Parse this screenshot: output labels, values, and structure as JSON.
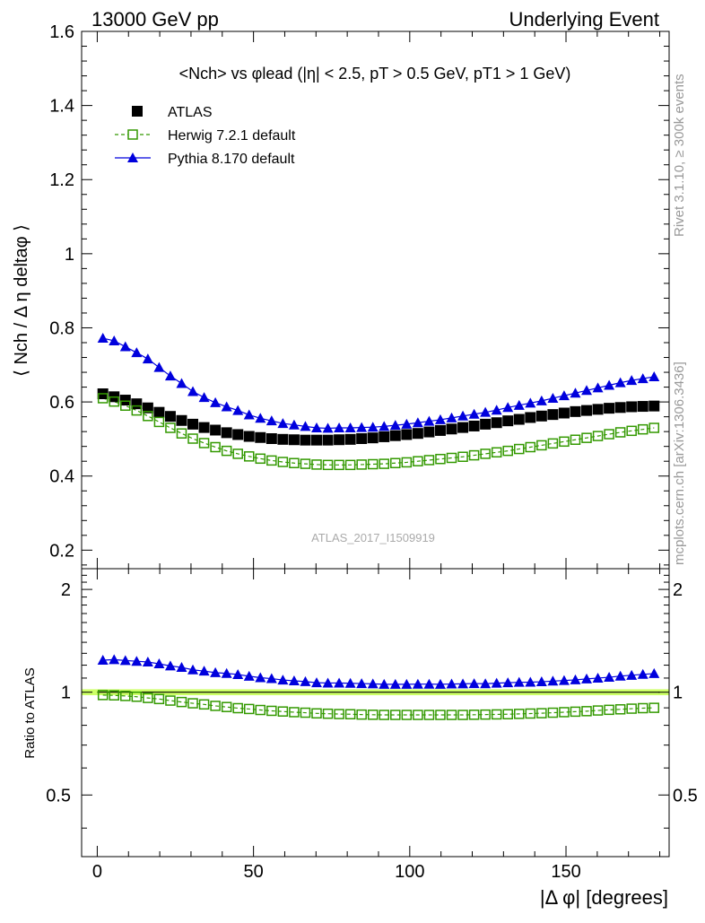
{
  "header": {
    "left": "13000 GeV pp",
    "right": "Underlying Event"
  },
  "side_label_top": "Rivet 3.1.10, ≥ 300k events",
  "side_label_bottom": "mcplots.cern.ch [arXiv:1306.3436]",
  "watermark": "ATLAS_2017_I1509919",
  "colors": {
    "atlas": "#000000",
    "herwig": "#339900",
    "pythia": "#0000dd",
    "band": "#ccff66"
  },
  "chart_data": [
    {
      "type": "scatter",
      "title": "<Nch> vs φlead (|η| < 2.5, pT > 0.5 GeV, pT1 > 1 GeV)",
      "ylabel": "⟨ Nch / Δ η deltaφ ⟩",
      "xlabel": "|Δ φ| [degrees]",
      "xlim": [
        -5,
        183
      ],
      "ylim": [
        0.15,
        1.6
      ],
      "yticks": [
        "0.2",
        "0.4",
        "0.6",
        "0.8",
        "1",
        "1.2",
        "1.4",
        "1.6"
      ],
      "xticks": [
        "0",
        "50",
        "100",
        "150"
      ],
      "legend_position": "top-left",
      "series": [
        {
          "name": "ATLAS",
          "marker": "square-filled",
          "x": [
            1.8,
            5.4,
            9.0,
            12.6,
            16.2,
            19.8,
            23.4,
            27.0,
            30.6,
            34.2,
            37.8,
            41.4,
            45.0,
            48.6,
            52.2,
            55.8,
            59.4,
            63.0,
            66.6,
            70.2,
            73.8,
            77.4,
            81.0,
            84.6,
            88.2,
            91.8,
            95.4,
            99.0,
            102.6,
            106.2,
            109.8,
            113.4,
            117.0,
            120.6,
            124.2,
            127.8,
            131.4,
            135.0,
            138.6,
            142.2,
            145.8,
            149.4,
            153.0,
            156.6,
            160.2,
            163.8,
            167.4,
            171.0,
            174.6,
            178.2
          ],
          "values": [
            0.622,
            0.614,
            0.605,
            0.595,
            0.584,
            0.572,
            0.561,
            0.55,
            0.54,
            0.531,
            0.524,
            0.517,
            0.512,
            0.507,
            0.504,
            0.501,
            0.499,
            0.498,
            0.497,
            0.497,
            0.497,
            0.498,
            0.499,
            0.501,
            0.503,
            0.506,
            0.509,
            0.512,
            0.515,
            0.519,
            0.523,
            0.527,
            0.531,
            0.535,
            0.54,
            0.544,
            0.549,
            0.553,
            0.558,
            0.562,
            0.566,
            0.57,
            0.574,
            0.577,
            0.58,
            0.583,
            0.585,
            0.587,
            0.588,
            0.589
          ]
        },
        {
          "name": "Herwig 7.2.1 default",
          "marker": "square-open",
          "line": "dashed",
          "x": [
            1.8,
            5.4,
            9.0,
            12.6,
            16.2,
            19.8,
            23.4,
            27.0,
            30.6,
            34.2,
            37.8,
            41.4,
            45.0,
            48.6,
            52.2,
            55.8,
            59.4,
            63.0,
            66.6,
            70.2,
            73.8,
            77.4,
            81.0,
            84.6,
            88.2,
            91.8,
            95.4,
            99.0,
            102.6,
            106.2,
            109.8,
            113.4,
            117.0,
            120.6,
            124.2,
            127.8,
            131.4,
            135.0,
            138.6,
            142.2,
            145.8,
            149.4,
            153.0,
            156.6,
            160.2,
            163.8,
            167.4,
            171.0,
            174.6,
            178.2
          ],
          "values": [
            0.61,
            0.601,
            0.59,
            0.577,
            0.562,
            0.546,
            0.53,
            0.515,
            0.501,
            0.489,
            0.478,
            0.468,
            0.46,
            0.453,
            0.447,
            0.442,
            0.438,
            0.435,
            0.433,
            0.431,
            0.43,
            0.43,
            0.43,
            0.431,
            0.432,
            0.433,
            0.435,
            0.437,
            0.44,
            0.443,
            0.446,
            0.449,
            0.452,
            0.456,
            0.46,
            0.464,
            0.468,
            0.473,
            0.478,
            0.483,
            0.488,
            0.493,
            0.498,
            0.503,
            0.508,
            0.513,
            0.518,
            0.522,
            0.526,
            0.53
          ]
        },
        {
          "name": "Pythia 8.170 default",
          "marker": "triangle-filled",
          "line": "solid",
          "x": [
            1.8,
            5.4,
            9.0,
            12.6,
            16.2,
            19.8,
            23.4,
            27.0,
            30.6,
            34.2,
            37.8,
            41.4,
            45.0,
            48.6,
            52.2,
            55.8,
            59.4,
            63.0,
            66.6,
            70.2,
            73.8,
            77.4,
            81.0,
            84.6,
            88.2,
            91.8,
            95.4,
            99.0,
            102.6,
            106.2,
            109.8,
            113.4,
            117.0,
            120.6,
            124.2,
            127.8,
            131.4,
            135.0,
            138.6,
            142.2,
            145.8,
            149.4,
            153.0,
            156.6,
            160.2,
            163.8,
            167.4,
            171.0,
            174.6,
            178.2
          ],
          "values": [
            0.772,
            0.765,
            0.749,
            0.733,
            0.716,
            0.693,
            0.67,
            0.65,
            0.628,
            0.612,
            0.598,
            0.587,
            0.577,
            0.565,
            0.556,
            0.549,
            0.542,
            0.538,
            0.534,
            0.53,
            0.529,
            0.53,
            0.53,
            0.531,
            0.532,
            0.534,
            0.537,
            0.54,
            0.544,
            0.548,
            0.552,
            0.557,
            0.562,
            0.567,
            0.572,
            0.578,
            0.585,
            0.591,
            0.597,
            0.603,
            0.61,
            0.617,
            0.624,
            0.631,
            0.638,
            0.645,
            0.652,
            0.658,
            0.663,
            0.668
          ]
        }
      ]
    },
    {
      "type": "scatter",
      "ylabel": "Ratio to ATLAS",
      "ylim": [
        0.33,
        2.3
      ],
      "log_scale_y": true,
      "yticks": [
        "0.5",
        "1",
        "2"
      ],
      "series": [
        {
          "name": "Herwig 7.2.1 default",
          "values": [
            0.981,
            0.979,
            0.975,
            0.97,
            0.962,
            0.955,
            0.945,
            0.936,
            0.928,
            0.921,
            0.912,
            0.905,
            0.898,
            0.893,
            0.887,
            0.882,
            0.878,
            0.874,
            0.871,
            0.867,
            0.865,
            0.863,
            0.862,
            0.86,
            0.859,
            0.858,
            0.858,
            0.858,
            0.858,
            0.858,
            0.858,
            0.858,
            0.858,
            0.859,
            0.86,
            0.861,
            0.862,
            0.864,
            0.866,
            0.868,
            0.871,
            0.874,
            0.877,
            0.88,
            0.884,
            0.888,
            0.891,
            0.895,
            0.898,
            0.9
          ]
        },
        {
          "name": "Pythia 8.170 default",
          "values": [
            1.241,
            1.246,
            1.238,
            1.232,
            1.226,
            1.211,
            1.194,
            1.182,
            1.163,
            1.153,
            1.141,
            1.135,
            1.127,
            1.114,
            1.103,
            1.096,
            1.086,
            1.08,
            1.074,
            1.066,
            1.064,
            1.064,
            1.062,
            1.06,
            1.058,
            1.055,
            1.055,
            1.055,
            1.056,
            1.056,
            1.055,
            1.057,
            1.058,
            1.06,
            1.059,
            1.063,
            1.066,
            1.069,
            1.07,
            1.073,
            1.078,
            1.082,
            1.087,
            1.094,
            1.1,
            1.106,
            1.115,
            1.121,
            1.128,
            1.134
          ]
        }
      ]
    }
  ]
}
